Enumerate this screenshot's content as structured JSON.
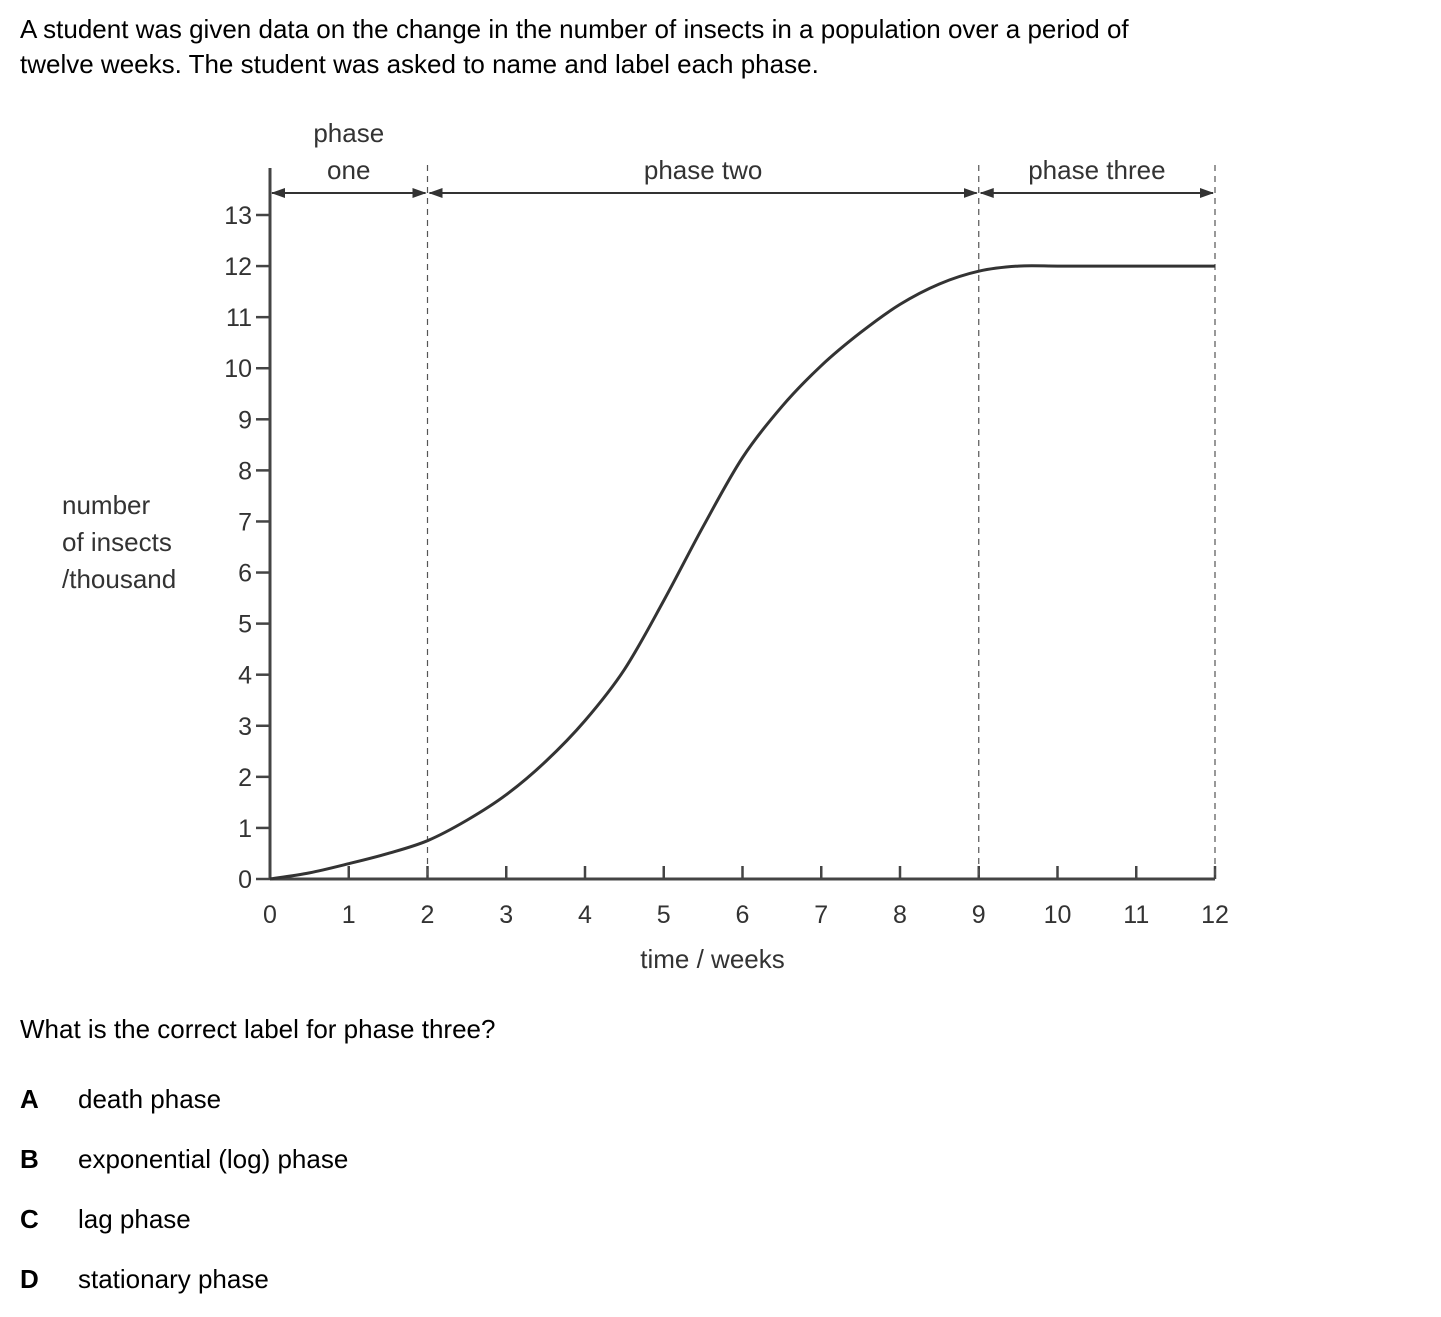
{
  "question": {
    "intro_line1": "A student was given data on the change in the number of insects in a population over a period of",
    "intro_line2": "twelve weeks. The student was asked to name and label each phase.",
    "prompt": "What is the correct label for phase three?",
    "options": [
      {
        "letter": "A",
        "text": "death phase"
      },
      {
        "letter": "B",
        "text": "exponential (log) phase"
      },
      {
        "letter": "C",
        "text": "lag phase"
      },
      {
        "letter": "D",
        "text": "stationary phase"
      }
    ]
  },
  "chart_data": {
    "type": "line",
    "title": "",
    "xlabel": "time / weeks",
    "ylabel_lines": [
      "number",
      "of insects",
      "/thousand"
    ],
    "xlim": [
      0,
      12
    ],
    "ylim": [
      0,
      13
    ],
    "xticks": [
      0,
      1,
      2,
      3,
      4,
      5,
      6,
      7,
      8,
      9,
      10,
      11,
      12
    ],
    "yticks": [
      0,
      1,
      2,
      3,
      4,
      5,
      6,
      7,
      8,
      9,
      10,
      11,
      12,
      13
    ],
    "grid": false,
    "series": [
      {
        "x": [
          0,
          0.5,
          1,
          1.5,
          2,
          2.5,
          3,
          3.5,
          4,
          4.5,
          5,
          5.5,
          6,
          6.5,
          7,
          7.5,
          8,
          8.5,
          9,
          9.5,
          10,
          10.5,
          11,
          11.5,
          12
        ],
        "y": [
          0,
          0.12,
          0.3,
          0.5,
          0.75,
          1.15,
          1.65,
          2.3,
          3.1,
          4.1,
          5.45,
          6.9,
          8.25,
          9.25,
          10.05,
          10.7,
          11.25,
          11.65,
          11.9,
          12.0,
          12.0,
          12.0,
          12.0,
          12.0,
          12.0
        ]
      }
    ],
    "phases": [
      {
        "label_lines": [
          "phase",
          "one"
        ],
        "start": 0,
        "end": 2
      },
      {
        "label_lines": [
          "phase two"
        ],
        "start": 2,
        "end": 9
      },
      {
        "label_lines": [
          "phase three"
        ],
        "start": 9,
        "end": 12
      }
    ],
    "line_color": "#333333",
    "axis_color": "#444444"
  }
}
